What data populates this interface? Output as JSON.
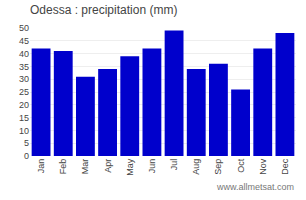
{
  "chart_data": {
    "type": "bar",
    "title": "Odessa : precipitation (mm)",
    "categories": [
      "Jan",
      "Feb",
      "Mar",
      "Apr",
      "May",
      "Jun",
      "Jul",
      "Aug",
      "Sep",
      "Oct",
      "Nov",
      "Dec"
    ],
    "values": [
      42,
      41,
      31,
      34,
      39,
      42,
      49,
      34,
      36,
      26,
      42,
      48
    ],
    "color": "#0000cc",
    "ylim": [
      0,
      50
    ],
    "yticks": [
      0,
      5,
      10,
      15,
      20,
      25,
      30,
      35,
      40,
      45,
      50
    ],
    "grid": true,
    "annotations": [
      "www.allmetsat.com"
    ]
  }
}
